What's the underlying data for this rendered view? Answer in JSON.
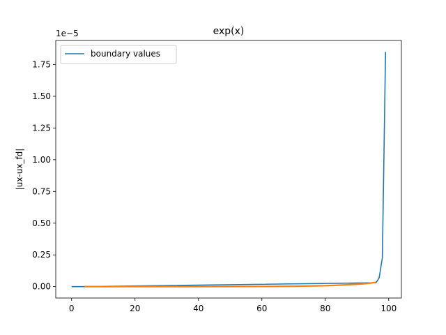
{
  "chart_data": {
    "type": "line",
    "title": "exp(x)",
    "xlabel": "",
    "ylabel": "|ux-ux_fd|",
    "y_offset_label": "1e−5",
    "xlim": [
      -5,
      104
    ],
    "ylim": [
      -0.09,
      1.94
    ],
    "x_ticks": [
      0,
      20,
      40,
      60,
      80,
      100
    ],
    "y_ticks": [
      0.0,
      0.25,
      0.5,
      0.75,
      1.0,
      1.25,
      1.5,
      1.75
    ],
    "y_tick_labels": [
      "0.00",
      "0.25",
      "0.50",
      "0.75",
      "1.00",
      "1.25",
      "1.50",
      "1.75"
    ],
    "grid": false,
    "legend_placement": "upper-left",
    "series": [
      {
        "name": "boundary values",
        "color": "#1f77b4",
        "points": [
          [
            0,
            0.0
          ],
          [
            2,
            0.0
          ],
          [
            4,
            0.0
          ],
          [
            96,
            0.03
          ],
          [
            97,
            0.07
          ],
          [
            98,
            0.23
          ],
          [
            99,
            1.85
          ]
        ]
      },
      {
        "color": "#ff7f0e",
        "points": [
          [
            4,
            0.0
          ],
          [
            20,
            0.0
          ],
          [
            40,
            0.0
          ],
          [
            60,
            0.001
          ],
          [
            70,
            0.003
          ],
          [
            80,
            0.007
          ],
          [
            85,
            0.012
          ],
          [
            90,
            0.018
          ],
          [
            93,
            0.024
          ],
          [
            95,
            0.03
          ],
          [
            96,
            0.034
          ]
        ]
      }
    ]
  }
}
